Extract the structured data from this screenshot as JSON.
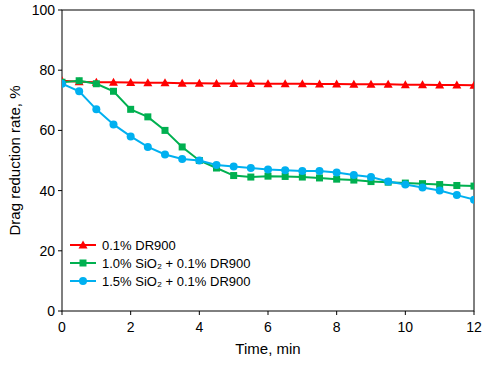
{
  "chart_data": {
    "type": "line",
    "x_label": "Time, min",
    "y_label": "Drag reduction rate, %",
    "x": [
      0,
      0.5,
      1,
      1.5,
      2,
      2.5,
      3,
      3.5,
      4,
      4.5,
      5,
      5.5,
      6,
      6.5,
      7,
      7.5,
      8,
      8.5,
      9,
      9.5,
      10,
      10.5,
      11,
      11.5,
      12
    ],
    "xlim": [
      0,
      12
    ],
    "xticks": [
      0,
      2,
      4,
      6,
      8,
      10,
      12
    ],
    "ylim": [
      0,
      100
    ],
    "yticks": [
      0,
      20,
      40,
      60,
      80,
      100
    ],
    "grid": false,
    "legend": "lower left",
    "series": [
      {
        "name": "0.1% DR900",
        "color": "#ff0000",
        "marker": "triangle",
        "line_style": "solid",
        "values": [
          76.5,
          76.2,
          76,
          76,
          75.9,
          75.8,
          75.8,
          75.7,
          75.7,
          75.6,
          75.6,
          75.6,
          75.5,
          75.5,
          75.5,
          75.4,
          75.4,
          75.3,
          75.3,
          75.3,
          75.2,
          75.2,
          75.1,
          75.1,
          75
        ]
      },
      {
        "name": "1.0% SiO₂ + 0.1% DR900",
        "color": "#00b050",
        "marker": "square",
        "line_style": "solid",
        "values": [
          76,
          76.5,
          75.5,
          73,
          67,
          64.5,
          60,
          54.5,
          50,
          47.5,
          45,
          44.5,
          44.8,
          44.7,
          44.5,
          44.2,
          43.8,
          43.5,
          43,
          42.8,
          42.5,
          42.3,
          42,
          41.7,
          41.5
        ]
      },
      {
        "name": "1.5% SiO₂ + 0.1% DR900",
        "color": "#00b0f0",
        "marker": "circle",
        "line_style": "solid",
        "values": [
          75.5,
          73,
          67,
          62,
          58,
          54.5,
          52,
          50.5,
          50,
          48.5,
          48,
          47.5,
          47,
          46.8,
          46.5,
          46.5,
          46,
          45.2,
          44.5,
          43,
          42,
          41,
          40,
          38.5,
          37
        ]
      }
    ]
  }
}
